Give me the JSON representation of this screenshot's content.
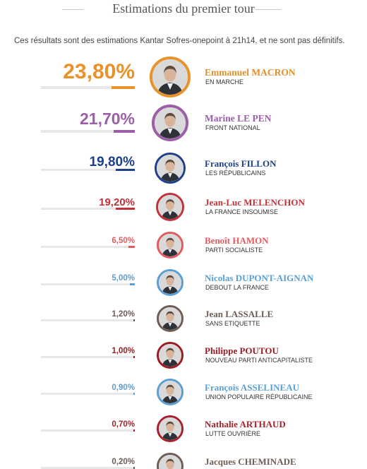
{
  "header": {
    "title": "Estimations du premier tour",
    "subtitle": "Ces résultats sont des estimations Kantar Sofres-onepoint à 21h14, et ne sont pas définitifs."
  },
  "chart_data": {
    "type": "bar",
    "title": "Estimations du premier tour",
    "categories": [
      "Emmanuel MACRON",
      "Marine LE PEN",
      "François FILLON",
      "Jean-Luc MELENCHON",
      "Benoît HAMON",
      "Nicolas DUPONT-AIGNAN",
      "Jean LASSALLE",
      "Philippe POUTOU",
      "François ASSELINEAU",
      "Nathalie ARTHAUD",
      "Jacques CHEMINADE"
    ],
    "values": [
      23.8,
      21.7,
      19.8,
      19.2,
      6.5,
      5.0,
      1.2,
      1.0,
      0.9,
      0.7,
      0.2
    ],
    "candidates": [
      {
        "pct": "23,80%",
        "value": 23.8,
        "name": "Emmanuel MACRON",
        "party": "EN MARCHE",
        "color": "#e8922b",
        "name_color": "#e0902d"
      },
      {
        "pct": "21,70%",
        "value": 21.7,
        "name": "Marine LE PEN",
        "party": "FRONT NATIONAL",
        "color": "#9b5fa8",
        "name_color": "#9b5fa8"
      },
      {
        "pct": "19,80%",
        "value": 19.8,
        "name": "François FILLON",
        "party": "LES RÉPUBLICAINS",
        "color": "#1e3f8a",
        "name_color": "#1e3f8a"
      },
      {
        "pct": "19,20%",
        "value": 19.2,
        "name": "Jean-Luc MELENCHON",
        "party": "LA FRANCE INSOUMISE",
        "color": "#c2313a",
        "name_color": "#c0333a"
      },
      {
        "pct": "6,50%",
        "value": 6.5,
        "name": "Benoît HAMON",
        "party": "PARTI SOCIALISTE",
        "color": "#e05a5f",
        "name_color": "#e05a5f"
      },
      {
        "pct": "5,00%",
        "value": 5.0,
        "name": "Nicolas DUPONT-AIGNAN",
        "party": "DEBOUT LA FRANCE",
        "color": "#5a9fd4",
        "name_color": "#5a9fd4"
      },
      {
        "pct": "1,20%",
        "value": 1.2,
        "name": "Jean LASSALLE",
        "party": "SANS ETIQUETTE",
        "color": "#6e5c55",
        "name_color": "#6e5c55"
      },
      {
        "pct": "1,00%",
        "value": 1.0,
        "name": "Philippe POUTOU",
        "party": "NOUVEAU PARTI ANTICAPITALISTE",
        "color": "#9c1b22",
        "name_color": "#9c1b22"
      },
      {
        "pct": "0,90%",
        "value": 0.9,
        "name": "François ASSELINEAU",
        "party": "UNION POPULAIRE RÉPUBLICAINE",
        "color": "#5a9fd4",
        "name_color": "#5a9fd4"
      },
      {
        "pct": "0,70%",
        "value": 0.7,
        "name": "Nathalie ARTHAUD",
        "party": "LUTTE OUVRIÈRE",
        "color": "#a8202b",
        "name_color": "#a8202b"
      },
      {
        "pct": "0,20%",
        "value": 0.2,
        "name": "Jacques CHEMINADE",
        "party": "",
        "color": "#6e5c55",
        "name_color": "#6e5c55"
      }
    ]
  }
}
